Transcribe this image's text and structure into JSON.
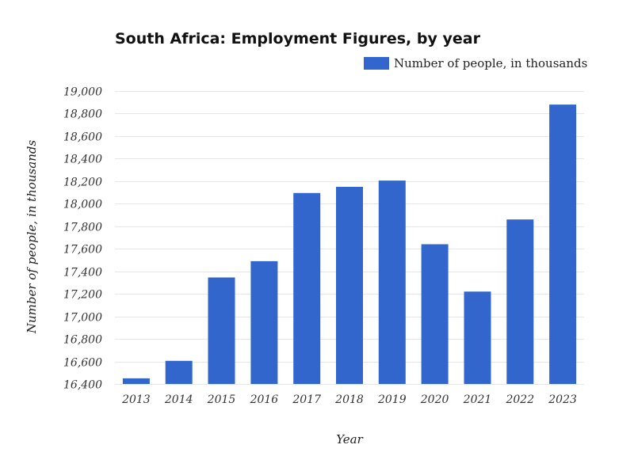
{
  "chart_data": {
    "type": "bar",
    "title": "South Africa: Employment Figures, by year",
    "xlabel": "Year",
    "ylabel": "Number of people, in thousands",
    "categories": [
      "2013",
      "2014",
      "2015",
      "2016",
      "2017",
      "2018",
      "2019",
      "2020",
      "2021",
      "2022",
      "2023"
    ],
    "series": [
      {
        "name": "Number of people, in thousands",
        "values": [
          16450,
          16605,
          17345,
          17490,
          18095,
          18150,
          18205,
          17640,
          17220,
          17860,
          18880
        ]
      }
    ],
    "ylim": [
      16400,
      19000
    ],
    "yticks": [
      "16,400",
      "16,600",
      "16,800",
      "17,000",
      "17,200",
      "17,400",
      "17,600",
      "17,800",
      "18,000",
      "18,200",
      "18,400",
      "18,600",
      "18,800",
      "19,000"
    ],
    "grid": true,
    "legend_position": "top-right",
    "bar_color": "#3366cc",
    "grid_color": "#e6e6e6"
  }
}
